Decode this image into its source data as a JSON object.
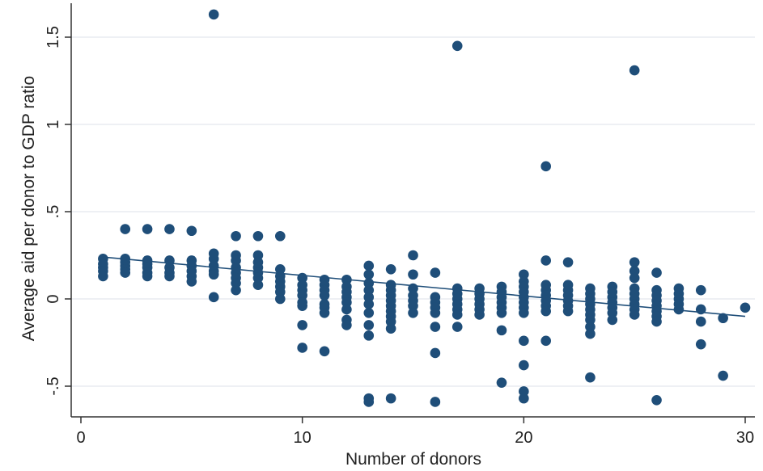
{
  "chart_data": {
    "type": "scatter",
    "title": "",
    "xlabel": "Number of donors",
    "ylabel": "Average aid per donor to GDP ratio",
    "xlim": [
      0,
      30
    ],
    "ylim": [
      -0.6,
      1.65
    ],
    "xticks": [
      {
        "value": 0,
        "label": "0"
      },
      {
        "value": 10,
        "label": "10"
      },
      {
        "value": 20,
        "label": "20"
      },
      {
        "value": 30,
        "label": "30"
      }
    ],
    "yticks": [
      {
        "value": -0.5,
        "label": "-.5"
      },
      {
        "value": 0,
        "label": "0"
      },
      {
        "value": 0.5,
        "label": ".5"
      },
      {
        "value": 1,
        "label": "1"
      },
      {
        "value": 1.5,
        "label": "1.5"
      }
    ],
    "grid": "horizontal",
    "legend": "none",
    "colors": {
      "points": "#1f4e79",
      "fit_line": "#1f4e79",
      "grid": "#e3e8ee",
      "axis": "#333333"
    },
    "fit_line": {
      "x": [
        1,
        30
      ],
      "y": [
        0.24,
        -0.1
      ]
    },
    "points": [
      {
        "x": 1,
        "y": 0.23
      },
      {
        "x": 1,
        "y": 0.2
      },
      {
        "x": 1,
        "y": 0.18
      },
      {
        "x": 1,
        "y": 0.16
      },
      {
        "x": 1,
        "y": 0.13
      },
      {
        "x": 2,
        "y": 0.4
      },
      {
        "x": 2,
        "y": 0.23
      },
      {
        "x": 2,
        "y": 0.21
      },
      {
        "x": 2,
        "y": 0.19
      },
      {
        "x": 2,
        "y": 0.17
      },
      {
        "x": 2,
        "y": 0.15
      },
      {
        "x": 3,
        "y": 0.4
      },
      {
        "x": 3,
        "y": 0.22
      },
      {
        "x": 3,
        "y": 0.2
      },
      {
        "x": 3,
        "y": 0.18
      },
      {
        "x": 3,
        "y": 0.15
      },
      {
        "x": 3,
        "y": 0.13
      },
      {
        "x": 4,
        "y": 0.4
      },
      {
        "x": 4,
        "y": 0.22
      },
      {
        "x": 4,
        "y": 0.18
      },
      {
        "x": 4,
        "y": 0.15
      },
      {
        "x": 4,
        "y": 0.13
      },
      {
        "x": 5,
        "y": 0.39
      },
      {
        "x": 5,
        "y": 0.22
      },
      {
        "x": 5,
        "y": 0.19
      },
      {
        "x": 5,
        "y": 0.16
      },
      {
        "x": 5,
        "y": 0.13
      },
      {
        "x": 5,
        "y": 0.1
      },
      {
        "x": 6,
        "y": 1.63
      },
      {
        "x": 6,
        "y": 0.26
      },
      {
        "x": 6,
        "y": 0.23
      },
      {
        "x": 6,
        "y": 0.19
      },
      {
        "x": 6,
        "y": 0.16
      },
      {
        "x": 6,
        "y": 0.14
      },
      {
        "x": 6,
        "y": 0.01
      },
      {
        "x": 7,
        "y": 0.36
      },
      {
        "x": 7,
        "y": 0.25
      },
      {
        "x": 7,
        "y": 0.22
      },
      {
        "x": 7,
        "y": 0.18
      },
      {
        "x": 7,
        "y": 0.15
      },
      {
        "x": 7,
        "y": 0.12
      },
      {
        "x": 7,
        "y": 0.09
      },
      {
        "x": 7,
        "y": 0.05
      },
      {
        "x": 8,
        "y": 0.36
      },
      {
        "x": 8,
        "y": 0.25
      },
      {
        "x": 8,
        "y": 0.21
      },
      {
        "x": 8,
        "y": 0.18
      },
      {
        "x": 8,
        "y": 0.15
      },
      {
        "x": 8,
        "y": 0.12
      },
      {
        "x": 8,
        "y": 0.08
      },
      {
        "x": 9,
        "y": 0.36
      },
      {
        "x": 9,
        "y": 0.17
      },
      {
        "x": 9,
        "y": 0.13
      },
      {
        "x": 9,
        "y": 0.1
      },
      {
        "x": 9,
        "y": 0.07
      },
      {
        "x": 9,
        "y": 0.04
      },
      {
        "x": 9,
        "y": 0.0
      },
      {
        "x": 10,
        "y": 0.12
      },
      {
        "x": 10,
        "y": 0.08
      },
      {
        "x": 10,
        "y": 0.05
      },
      {
        "x": 10,
        "y": 0.02
      },
      {
        "x": 10,
        "y": -0.02
      },
      {
        "x": 10,
        "y": -0.04
      },
      {
        "x": 10,
        "y": -0.15
      },
      {
        "x": 10,
        "y": -0.28
      },
      {
        "x": 11,
        "y": 0.11
      },
      {
        "x": 11,
        "y": 0.08
      },
      {
        "x": 11,
        "y": 0.05
      },
      {
        "x": 11,
        "y": 0.02
      },
      {
        "x": 11,
        "y": -0.03
      },
      {
        "x": 11,
        "y": -0.05
      },
      {
        "x": 11,
        "y": -0.08
      },
      {
        "x": 11,
        "y": -0.3
      },
      {
        "x": 12,
        "y": 0.11
      },
      {
        "x": 12,
        "y": 0.07
      },
      {
        "x": 12,
        "y": 0.04
      },
      {
        "x": 12,
        "y": 0.01
      },
      {
        "x": 12,
        "y": -0.02
      },
      {
        "x": 12,
        "y": -0.06
      },
      {
        "x": 12,
        "y": -0.12
      },
      {
        "x": 12,
        "y": -0.15
      },
      {
        "x": 13,
        "y": 0.19
      },
      {
        "x": 13,
        "y": 0.14
      },
      {
        "x": 13,
        "y": 0.09
      },
      {
        "x": 13,
        "y": 0.05
      },
      {
        "x": 13,
        "y": 0.01
      },
      {
        "x": 13,
        "y": -0.03
      },
      {
        "x": 13,
        "y": -0.08
      },
      {
        "x": 13,
        "y": -0.15
      },
      {
        "x": 13,
        "y": -0.21
      },
      {
        "x": 13,
        "y": -0.57
      },
      {
        "x": 13,
        "y": -0.59
      },
      {
        "x": 14,
        "y": 0.17
      },
      {
        "x": 14,
        "y": 0.08
      },
      {
        "x": 14,
        "y": 0.05
      },
      {
        "x": 14,
        "y": 0.02
      },
      {
        "x": 14,
        "y": -0.01
      },
      {
        "x": 14,
        "y": -0.04
      },
      {
        "x": 14,
        "y": -0.07
      },
      {
        "x": 14,
        "y": -0.1
      },
      {
        "x": 14,
        "y": -0.13
      },
      {
        "x": 14,
        "y": -0.17
      },
      {
        "x": 14,
        "y": -0.57
      },
      {
        "x": 15,
        "y": 0.25
      },
      {
        "x": 15,
        "y": 0.14
      },
      {
        "x": 15,
        "y": 0.06
      },
      {
        "x": 15,
        "y": 0.02
      },
      {
        "x": 15,
        "y": -0.01
      },
      {
        "x": 15,
        "y": -0.04
      },
      {
        "x": 15,
        "y": -0.08
      },
      {
        "x": 16,
        "y": 0.15
      },
      {
        "x": 16,
        "y": 0.01
      },
      {
        "x": 16,
        "y": -0.02
      },
      {
        "x": 16,
        "y": -0.05
      },
      {
        "x": 16,
        "y": -0.08
      },
      {
        "x": 16,
        "y": -0.16
      },
      {
        "x": 16,
        "y": -0.31
      },
      {
        "x": 16,
        "y": -0.59
      },
      {
        "x": 17,
        "y": 1.45
      },
      {
        "x": 17,
        "y": 0.06
      },
      {
        "x": 17,
        "y": 0.03
      },
      {
        "x": 17,
        "y": 0.0
      },
      {
        "x": 17,
        "y": -0.03
      },
      {
        "x": 17,
        "y": -0.06
      },
      {
        "x": 17,
        "y": -0.09
      },
      {
        "x": 17,
        "y": -0.16
      },
      {
        "x": 18,
        "y": 0.06
      },
      {
        "x": 18,
        "y": 0.03
      },
      {
        "x": 18,
        "y": 0.0
      },
      {
        "x": 18,
        "y": -0.03
      },
      {
        "x": 18,
        "y": -0.06
      },
      {
        "x": 18,
        "y": -0.09
      },
      {
        "x": 19,
        "y": 0.07
      },
      {
        "x": 19,
        "y": 0.04
      },
      {
        "x": 19,
        "y": 0.01
      },
      {
        "x": 19,
        "y": -0.02
      },
      {
        "x": 19,
        "y": -0.05
      },
      {
        "x": 19,
        "y": -0.08
      },
      {
        "x": 19,
        "y": -0.18
      },
      {
        "x": 19,
        "y": -0.48
      },
      {
        "x": 20,
        "y": 0.14
      },
      {
        "x": 20,
        "y": 0.1
      },
      {
        "x": 20,
        "y": 0.07
      },
      {
        "x": 20,
        "y": 0.04
      },
      {
        "x": 20,
        "y": 0.01
      },
      {
        "x": 20,
        "y": -0.02
      },
      {
        "x": 20,
        "y": -0.05
      },
      {
        "x": 20,
        "y": -0.08
      },
      {
        "x": 20,
        "y": -0.24
      },
      {
        "x": 20,
        "y": -0.38
      },
      {
        "x": 20,
        "y": -0.53
      },
      {
        "x": 20,
        "y": -0.57
      },
      {
        "x": 21,
        "y": 0.76
      },
      {
        "x": 21,
        "y": 0.22
      },
      {
        "x": 21,
        "y": 0.08
      },
      {
        "x": 21,
        "y": 0.05
      },
      {
        "x": 21,
        "y": 0.02
      },
      {
        "x": 21,
        "y": -0.01
      },
      {
        "x": 21,
        "y": -0.04
      },
      {
        "x": 21,
        "y": -0.07
      },
      {
        "x": 21,
        "y": -0.24
      },
      {
        "x": 22,
        "y": 0.21
      },
      {
        "x": 22,
        "y": 0.08
      },
      {
        "x": 22,
        "y": 0.05
      },
      {
        "x": 22,
        "y": 0.02
      },
      {
        "x": 22,
        "y": -0.01
      },
      {
        "x": 22,
        "y": -0.04
      },
      {
        "x": 22,
        "y": -0.07
      },
      {
        "x": 23,
        "y": 0.06
      },
      {
        "x": 23,
        "y": 0.03
      },
      {
        "x": 23,
        "y": 0.0
      },
      {
        "x": 23,
        "y": -0.03
      },
      {
        "x": 23,
        "y": -0.06
      },
      {
        "x": 23,
        "y": -0.09
      },
      {
        "x": 23,
        "y": -0.12
      },
      {
        "x": 23,
        "y": -0.16
      },
      {
        "x": 23,
        "y": -0.2
      },
      {
        "x": 23,
        "y": -0.45
      },
      {
        "x": 24,
        "y": 0.07
      },
      {
        "x": 24,
        "y": 0.04
      },
      {
        "x": 24,
        "y": 0.01
      },
      {
        "x": 24,
        "y": -0.02
      },
      {
        "x": 24,
        "y": -0.05
      },
      {
        "x": 24,
        "y": -0.08
      },
      {
        "x": 24,
        "y": -0.12
      },
      {
        "x": 25,
        "y": 1.31
      },
      {
        "x": 25,
        "y": 0.21
      },
      {
        "x": 25,
        "y": 0.16
      },
      {
        "x": 25,
        "y": 0.12
      },
      {
        "x": 25,
        "y": 0.06
      },
      {
        "x": 25,
        "y": 0.03
      },
      {
        "x": 25,
        "y": 0.0
      },
      {
        "x": 25,
        "y": -0.03
      },
      {
        "x": 25,
        "y": -0.06
      },
      {
        "x": 25,
        "y": -0.09
      },
      {
        "x": 26,
        "y": 0.15
      },
      {
        "x": 26,
        "y": 0.05
      },
      {
        "x": 26,
        "y": 0.02
      },
      {
        "x": 26,
        "y": -0.01
      },
      {
        "x": 26,
        "y": -0.04
      },
      {
        "x": 26,
        "y": -0.07
      },
      {
        "x": 26,
        "y": -0.1
      },
      {
        "x": 26,
        "y": -0.13
      },
      {
        "x": 26,
        "y": -0.58
      },
      {
        "x": 27,
        "y": 0.06
      },
      {
        "x": 27,
        "y": 0.03
      },
      {
        "x": 27,
        "y": 0.0
      },
      {
        "x": 27,
        "y": -0.03
      },
      {
        "x": 27,
        "y": -0.06
      },
      {
        "x": 28,
        "y": 0.05
      },
      {
        "x": 28,
        "y": -0.06
      },
      {
        "x": 28,
        "y": -0.13
      },
      {
        "x": 28,
        "y": -0.26
      },
      {
        "x": 29,
        "y": -0.11
      },
      {
        "x": 29,
        "y": -0.44
      },
      {
        "x": 30,
        "y": -0.05
      }
    ]
  }
}
